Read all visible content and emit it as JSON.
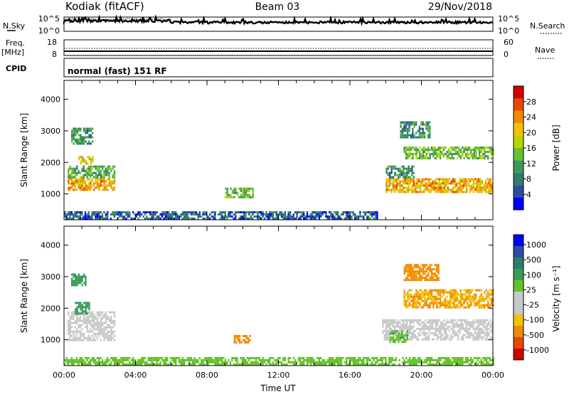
{
  "header": {
    "site": "Kodiak (fitACF)",
    "beam": "Beam 03",
    "date": "29/Nov/2018"
  },
  "noise_panel": {
    "left_label": "N.Sky",
    "right_label": "N.Search",
    "left_ticks": [
      "10^5",
      "10^0"
    ],
    "right_ticks": [
      "10^5",
      "10^0"
    ]
  },
  "freq_panel": {
    "left_label_1": "Freq.",
    "left_label_2": "[MHz]",
    "right_label": "Nave",
    "left_ticks": [
      "18",
      "8"
    ],
    "right_ticks": [
      "60",
      "0"
    ]
  },
  "cpid_panel": {
    "label": "CPID",
    "mode": "normal (fast) 151 RF"
  },
  "colors": {
    "power_scale": [
      "#0000ff",
      "#2a4fa0",
      "#2e7d6b",
      "#3b9a5a",
      "#66c22a",
      "#b9d400",
      "#f2c200",
      "#f08a00",
      "#e84800",
      "#d40000"
    ],
    "velocity_scale": [
      "#d40000",
      "#e84800",
      "#f08a00",
      "#f2c200",
      "#c8c8c8",
      "#c8c8c8",
      "#66c22a",
      "#3b9a5a",
      "#2e7d6b",
      "#2a4fa0",
      "#0000ff"
    ],
    "ground_scatter": "#c8c8c8"
  },
  "chart_data": [
    {
      "type": "heatmap",
      "name": "power",
      "ylabel": "Slant Range [km]",
      "ylim": [
        180,
        4600
      ],
      "yticks": [
        "1000",
        "2000",
        "3000",
        "4000"
      ],
      "xlim_hours": [
        0,
        24
      ],
      "colorbar_label": "Power [dB]",
      "colorbar_ticks": [
        "4",
        "8",
        "12",
        "16",
        "20",
        "24",
        "28"
      ],
      "colorbar_range": [
        0,
        32
      ],
      "regions": [
        {
          "t0": 0.2,
          "t1": 2.8,
          "r0": 1100,
          "r1": 1500,
          "value": 22
        },
        {
          "t0": 0.2,
          "t1": 2.8,
          "r0": 1500,
          "r1": 1900,
          "value": 12
        },
        {
          "t0": 0.4,
          "t1": 1.6,
          "r0": 2600,
          "r1": 3100,
          "value": 10
        },
        {
          "t0": 0.8,
          "t1": 1.6,
          "r0": 1950,
          "r1": 2200,
          "value": 20
        },
        {
          "t0": 9.0,
          "t1": 10.6,
          "r0": 900,
          "r1": 1200,
          "value": 14
        },
        {
          "t0": 0.0,
          "t1": 17.5,
          "r0": 200,
          "r1": 450,
          "value": 6
        },
        {
          "t0": 18.0,
          "t1": 24.0,
          "r0": 1050,
          "r1": 1500,
          "value": 22
        },
        {
          "t0": 18.0,
          "t1": 19.6,
          "r0": 1500,
          "r1": 1900,
          "value": 10
        },
        {
          "t0": 19.0,
          "t1": 24.0,
          "r0": 2100,
          "r1": 2500,
          "value": 14
        },
        {
          "t0": 18.8,
          "t1": 20.5,
          "r0": 2800,
          "r1": 3300,
          "value": 10
        }
      ]
    },
    {
      "type": "heatmap",
      "name": "velocity",
      "ylabel": "Slant Range [km]",
      "ylim": [
        180,
        4600
      ],
      "yticks": [
        "1000",
        "2000",
        "3000",
        "4000"
      ],
      "xlim_hours": [
        0,
        24
      ],
      "xticks": [
        "00:00",
        "04:00",
        "08:00",
        "12:00",
        "16:00",
        "20:00",
        "00:00"
      ],
      "xlabel": "Time UT",
      "colorbar_label": "Velocity  [m s⁻¹]",
      "colorbar_ticks": [
        "1000",
        "500",
        "100",
        "25",
        "-25",
        "-100",
        "-500",
        "-1000"
      ],
      "regions": [
        {
          "t0": 0.2,
          "t1": 2.8,
          "r0": 1000,
          "r1": 1900,
          "value": 0
        },
        {
          "t0": 0.6,
          "t1": 1.4,
          "r0": 1800,
          "r1": 2200,
          "value": 300
        },
        {
          "t0": 0.4,
          "t1": 1.2,
          "r0": 2700,
          "r1": 3100,
          "value": 200
        },
        {
          "t0": 9.5,
          "t1": 10.4,
          "r0": 900,
          "r1": 1150,
          "value": -150
        },
        {
          "t0": 0.0,
          "t1": 24.0,
          "r0": 200,
          "r1": 450,
          "value": 60
        },
        {
          "t0": 17.8,
          "t1": 24.0,
          "r0": 1000,
          "r1": 1650,
          "value": 0
        },
        {
          "t0": 18.2,
          "t1": 19.2,
          "r0": 900,
          "r1": 1300,
          "value": 80
        },
        {
          "t0": 19.0,
          "t1": 24.0,
          "r0": 2000,
          "r1": 2600,
          "value": -100
        },
        {
          "t0": 19.0,
          "t1": 21.0,
          "r0": 2900,
          "r1": 3400,
          "value": -150
        }
      ]
    }
  ]
}
